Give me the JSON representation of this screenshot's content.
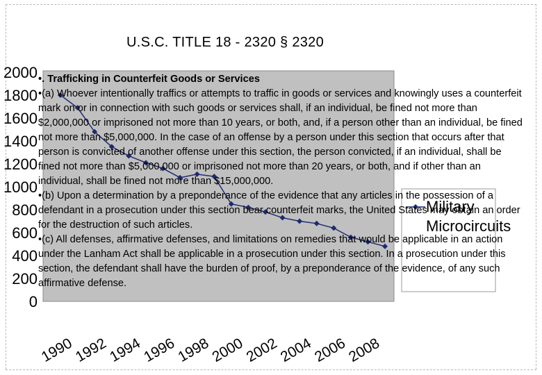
{
  "title": "U.S.C. TITLE 18 - 2320 § 2320",
  "chart_data": {
    "type": "line",
    "x": [
      1990,
      1991,
      1992,
      1993,
      1994,
      1995,
      1996,
      1997,
      1998,
      1999,
      2000,
      2001,
      2002,
      2003,
      2004,
      2005,
      2006,
      2007,
      2008,
      2009
    ],
    "series": [
      {
        "name": "Military Microcircuits",
        "values": [
          1800,
          1690,
          1480,
          1350,
          1270,
          1210,
          1160,
          1080,
          1110,
          1090,
          850,
          820,
          780,
          730,
          700,
          680,
          640,
          560,
          520,
          480
        ]
      }
    ],
    "ylim": [
      0,
      2000
    ],
    "yticks": [
      "0",
      "200",
      "400",
      "600",
      "800",
      "1000",
      "1200",
      "1400",
      "1600",
      "1800",
      "2000"
    ],
    "xticks": [
      "1990",
      "1992",
      "1994",
      "1996",
      "1998",
      "2000",
      "2002",
      "2004",
      "2006",
      "2008"
    ],
    "colors": {
      "series": "#1f2a6e",
      "plot_area": "#c0c0c0"
    },
    "legend": "right"
  },
  "text": {
    "heading": "•. Trafficking in Counterfeit Goods or Services",
    "para_a": "•(a) Whoever intentionally traffics or attempts to traffic in goods or services and knowingly uses a counterfeit mark on or in connection with such goods or services shall, if an individual, be fined not more than $2,000,000 or imprisoned not more than 10 years, or both, and, if a person other than an individual, be fined not more than $5,000,000. In the case of an offense by a person under this section that occurs after that person is convicted of another offense under this section, the person convicted, if an individual, shall be fined not more than $5,000,000 or imprisoned not more than 20 years, or both, and if other than an individual, shall be fined not more than $15,000,000.",
    "para_b": "•(b) Upon a determination by a preponderance of the evidence that any articles in the possession of a defendant in a prosecution under this section bear counterfeit marks, the United States may obtain an order for the destruction of such articles.",
    "para_c": "•(c) All defenses, affirmative defenses, and limitations on remedies that would be applicable in an action under the Lanham Act shall be applicable in a prosecution under this section. In a prosecution under this section, the defendant shall have the burden of proof, by a preponderance of the evidence, of any such affirmative defense."
  }
}
